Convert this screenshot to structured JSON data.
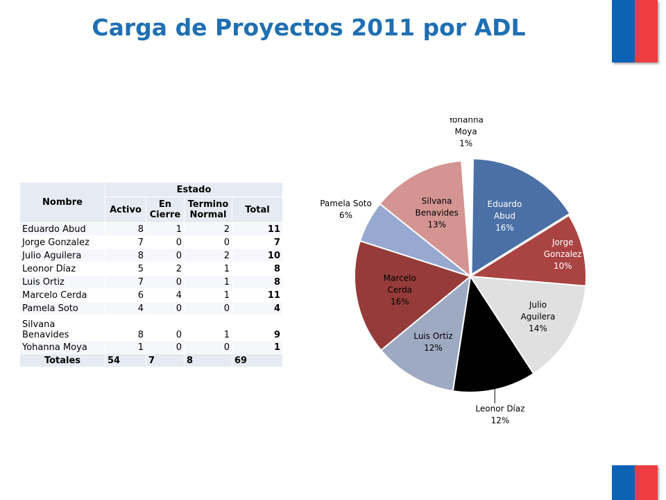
{
  "title": "Carga de Proyectos 2011 por ADL",
  "colors": {
    "title": "#1f6fb2",
    "flag_blue": "#0b63b5",
    "flag_red": "#ee3c42"
  },
  "table": {
    "header_nombre": "Nombre",
    "header_estado": "Estado",
    "col_activo": "Activo",
    "col_en_cierre": "En Cierre",
    "col_termino": "Termino Normal",
    "col_total": "Total",
    "rows": [
      {
        "name": "Eduardo Abud",
        "activo": "8",
        "cierre": "1",
        "termino": "2",
        "total": "11"
      },
      {
        "name": "Jorge Gonzalez",
        "activo": "7",
        "cierre": "0",
        "termino": "0",
        "total": "7"
      },
      {
        "name": "Julio Aguilera",
        "activo": "8",
        "cierre": "0",
        "termino": "2",
        "total": "10"
      },
      {
        "name": "Leonor Díaz",
        "activo": "5",
        "cierre": "2",
        "termino": "1",
        "total": "8"
      },
      {
        "name": "Luis Ortiz",
        "activo": "7",
        "cierre": "0",
        "termino": "1",
        "total": "8"
      },
      {
        "name": "Marcelo Cerda",
        "activo": "6",
        "cierre": "4",
        "termino": "1",
        "total": "11"
      },
      {
        "name": "Pamela Soto",
        "activo": "4",
        "cierre": "0",
        "termino": "0",
        "total": "4"
      },
      {
        "name": "Silvana Benavides",
        "activo": "8",
        "cierre": "0",
        "termino": "1",
        "total": "9"
      },
      {
        "name": "Yohanna Moya",
        "activo": "1",
        "cierre": "0",
        "termino": "0",
        "total": "1"
      }
    ],
    "totals": {
      "label": "Totales",
      "activo": "54",
      "cierre": "7",
      "termino": "8",
      "total": "69"
    }
  },
  "chart_data": {
    "type": "pie",
    "title": "",
    "categories": [
      "Eduardo Abud",
      "Jorge Gonzalez",
      "Julio Aguilera",
      "Leonor Díaz",
      "Luis Ortiz",
      "Marcelo Cerda",
      "Pamela Soto",
      "Silvana Benavides",
      "Yohanna Moya"
    ],
    "values": [
      11,
      7,
      10,
      8,
      8,
      11,
      4,
      9,
      1
    ],
    "labels": [
      [
        "Eduardo",
        "Abud",
        "16%"
      ],
      [
        "Jorge",
        "Gonzalez",
        "10%"
      ],
      [
        "Julio",
        "Aguilera",
        "14%"
      ],
      [
        "Leonor Díaz",
        "12%"
      ],
      [
        "Luis Ortiz",
        "12%"
      ],
      [
        "Marcelo",
        "Cerda",
        "16%"
      ],
      [
        "Pamela Soto",
        "6%"
      ],
      [
        "Silvana",
        "Benavides",
        "13%"
      ],
      [
        "Yohanna",
        "Moya",
        "1%"
      ]
    ],
    "colors": [
      "#4a70a6",
      "#a94442",
      "#e0e0e0",
      "#000000",
      "#9ea9c2",
      "#953c3a",
      "#97a9d1",
      "#d49592",
      "#ffffff"
    ],
    "label_colors": [
      "#ffffff",
      "#ffffff",
      "#000000",
      "#000000",
      "#000000",
      "#000000",
      "#000000",
      "#000000",
      "#000000"
    ],
    "legend": "none"
  }
}
